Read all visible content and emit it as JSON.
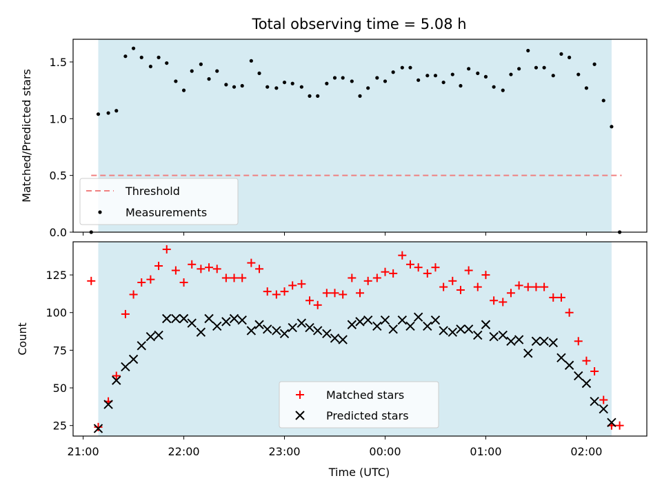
{
  "chart_data": [
    {
      "type": "scatter",
      "title": "Total observing time = 5.08 h",
      "ylabel": "Matched/Predicted stars",
      "xlabel": "",
      "x_axis": "time (UTC), decimal hours; values above 24 are after midnight",
      "xlim": [
        20.9,
        26.6
      ],
      "ylim": [
        0.0,
        1.7
      ],
      "y_ticks": [
        0.0,
        0.5,
        1.0,
        1.5
      ],
      "y_tick_labels": [
        "0.0",
        "0.5",
        "1.0",
        "1.5"
      ],
      "observing_window": [
        21.15,
        26.25
      ],
      "threshold": {
        "label": "Threshold",
        "y": 0.5,
        "x_range": [
          21.08,
          26.35
        ],
        "color": "#f08080"
      },
      "legend": {
        "position": "lower-left",
        "entries": [
          "Threshold",
          "Measurements"
        ]
      },
      "series": [
        {
          "name": "Measurements",
          "color": "#000000",
          "marker": "dot",
          "x": [
            21.08,
            21.15,
            21.25,
            21.33,
            21.42,
            21.5,
            21.58,
            21.67,
            21.75,
            21.83,
            21.92,
            22.0,
            22.08,
            22.17,
            22.25,
            22.33,
            22.42,
            22.5,
            22.58,
            22.67,
            22.75,
            22.83,
            22.92,
            23.0,
            23.08,
            23.17,
            23.25,
            23.33,
            23.42,
            23.5,
            23.58,
            23.67,
            23.75,
            23.83,
            23.92,
            24.0,
            24.08,
            24.17,
            24.25,
            24.33,
            24.42,
            24.5,
            24.58,
            24.67,
            24.75,
            24.83,
            24.92,
            25.0,
            25.08,
            25.17,
            25.25,
            25.33,
            25.42,
            25.5,
            25.58,
            25.67,
            25.75,
            25.83,
            25.92,
            26.0,
            26.08,
            26.17,
            26.25,
            26.33
          ],
          "y": [
            0.0,
            1.04,
            1.05,
            1.07,
            1.55,
            1.62,
            1.54,
            1.46,
            1.54,
            1.49,
            1.33,
            1.25,
            1.42,
            1.48,
            1.35,
            1.42,
            1.3,
            1.28,
            1.29,
            1.51,
            1.4,
            1.28,
            1.27,
            1.32,
            1.31,
            1.28,
            1.2,
            1.2,
            1.31,
            1.36,
            1.36,
            1.33,
            1.2,
            1.27,
            1.36,
            1.33,
            1.41,
            1.45,
            1.45,
            1.34,
            1.38,
            1.38,
            1.32,
            1.39,
            1.29,
            1.44,
            1.4,
            1.37,
            1.28,
            1.25,
            1.39,
            1.44,
            1.6,
            1.45,
            1.45,
            1.38,
            1.57,
            1.54,
            1.39,
            1.27,
            1.48,
            1.16,
            0.93,
            0.0
          ]
        }
      ]
    },
    {
      "type": "scatter",
      "title": "",
      "ylabel": "Count",
      "xlabel": "Time (UTC)",
      "x_axis": "time (UTC), decimal hours; values above 24 are after midnight",
      "xlim": [
        20.9,
        26.6
      ],
      "ylim": [
        18,
        147
      ],
      "y_ticks": [
        25,
        50,
        75,
        100,
        125
      ],
      "y_tick_labels": [
        "25",
        "50",
        "75",
        "100",
        "125"
      ],
      "x_ticks": [
        21.0,
        22.0,
        23.0,
        24.0,
        25.0,
        26.0
      ],
      "x_tick_labels": [
        "21:00",
        "22:00",
        "23:00",
        "00:00",
        "01:00",
        "02:00"
      ],
      "observing_window": [
        21.15,
        26.25
      ],
      "legend": {
        "position": "lower-center",
        "entries": [
          "Matched stars",
          "Predicted stars"
        ]
      },
      "series": [
        {
          "name": "Matched stars",
          "color": "#ff0000",
          "marker": "plus",
          "x": [
            21.08,
            21.15,
            21.25,
            21.33,
            21.42,
            21.5,
            21.58,
            21.67,
            21.75,
            21.83,
            21.92,
            22.0,
            22.08,
            22.17,
            22.25,
            22.33,
            22.42,
            22.5,
            22.58,
            22.67,
            22.75,
            22.83,
            22.92,
            23.0,
            23.08,
            23.17,
            23.25,
            23.33,
            23.42,
            23.5,
            23.58,
            23.67,
            23.75,
            23.83,
            23.92,
            24.0,
            24.08,
            24.17,
            24.25,
            24.33,
            24.42,
            24.5,
            24.58,
            24.67,
            24.75,
            24.83,
            24.92,
            25.0,
            25.08,
            25.17,
            25.25,
            25.33,
            25.42,
            25.5,
            25.58,
            25.67,
            25.75,
            25.83,
            25.92,
            26.0,
            26.08,
            26.17,
            26.25,
            26.33
          ],
          "y": [
            121,
            24,
            41,
            58,
            99,
            112,
            120,
            122,
            131,
            142,
            128,
            120,
            132,
            129,
            130,
            129,
            123,
            123,
            123,
            133,
            129,
            114,
            112,
            114,
            118,
            119,
            108,
            105,
            113,
            113,
            112,
            123,
            113,
            121,
            123,
            127,
            126,
            138,
            132,
            130,
            126,
            130,
            117,
            121,
            115,
            128,
            117,
            125,
            108,
            107,
            113,
            118,
            117,
            117,
            117,
            110,
            110,
            100,
            81,
            68,
            61,
            42,
            25,
            25
          ]
        },
        {
          "name": "Predicted stars",
          "color": "#000000",
          "marker": "x",
          "x": [
            21.15,
            21.25,
            21.33,
            21.42,
            21.5,
            21.58,
            21.67,
            21.75,
            21.83,
            21.92,
            22.0,
            22.08,
            22.17,
            22.25,
            22.33,
            22.42,
            22.5,
            22.58,
            22.67,
            22.75,
            22.83,
            22.92,
            23.0,
            23.08,
            23.17,
            23.25,
            23.33,
            23.42,
            23.5,
            23.58,
            23.67,
            23.75,
            23.83,
            23.92,
            24.0,
            24.08,
            24.17,
            24.25,
            24.33,
            24.42,
            24.5,
            24.58,
            24.67,
            24.75,
            24.83,
            24.92,
            25.0,
            25.08,
            25.17,
            25.25,
            25.33,
            25.42,
            25.5,
            25.58,
            25.67,
            25.75,
            25.83,
            25.92,
            26.0,
            26.08,
            26.17,
            26.25
          ],
          "y": [
            23,
            39,
            55,
            64,
            69,
            78,
            84,
            85,
            96,
            96,
            96,
            93,
            87,
            96,
            91,
            94,
            96,
            95,
            88,
            92,
            89,
            88,
            86,
            90,
            93,
            90,
            88,
            86,
            83,
            82,
            92,
            94,
            95,
            91,
            95,
            89,
            95,
            91,
            97,
            91,
            95,
            88,
            87,
            89,
            89,
            85,
            92,
            84,
            85,
            81,
            82,
            73,
            81,
            81,
            80,
            70,
            65,
            58,
            53,
            41,
            36,
            27
          ]
        }
      ]
    }
  ]
}
